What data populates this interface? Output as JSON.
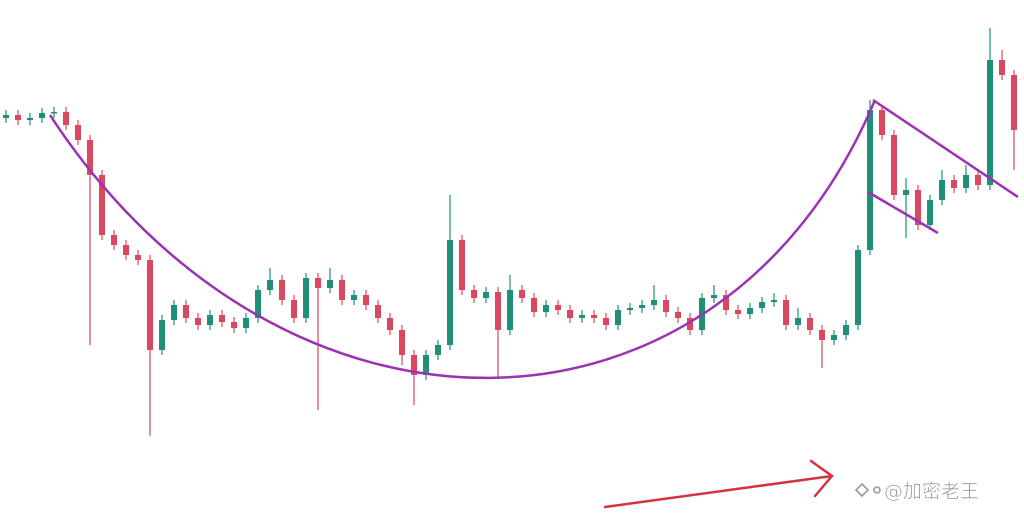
{
  "chart_data": {
    "type": "candlestick",
    "watermark": "@加密老王",
    "up_color": "#1f8f77",
    "down_color": "#d9485e",
    "ylim": [
      0,
      518
    ],
    "open": [
      400,
      403,
      398,
      400,
      405,
      406,
      393,
      378,
      343,
      283,
      273,
      263,
      258,
      168,
      198,
      213,
      200,
      193,
      203,
      196,
      190,
      200,
      228,
      238,
      218,
      200,
      240,
      230,
      238,
      218,
      223,
      213,
      200,
      188,
      163,
      143,
      163,
      173,
      278,
      228,
      220,
      226,
      188,
      228,
      220,
      206,
      213,
      208,
      200,
      203,
      200,
      193,
      208,
      210,
      213,
      218,
      206,
      200,
      188,
      220,
      223,
      208,
      204,
      210,
      216,
      218,
      193,
      200,
      188,
      178,
      183,
      193,
      268,
      408,
      383,
      323,
      328,
      293,
      318,
      338,
      330,
      343,
      333,
      458,
      443
    ],
    "high": [
      408,
      408,
      405,
      410,
      411,
      411,
      398,
      383,
      348,
      288,
      278,
      268,
      263,
      203,
      218,
      218,
      205,
      208,
      208,
      201,
      205,
      233,
      250,
      243,
      223,
      245,
      245,
      250,
      243,
      228,
      228,
      218,
      205,
      193,
      168,
      168,
      178,
      323,
      283,
      233,
      231,
      231,
      243,
      233,
      225,
      218,
      218,
      213,
      208,
      208,
      205,
      213,
      215,
      218,
      233,
      223,
      211,
      205,
      225,
      233,
      228,
      213,
      215,
      221,
      225,
      223,
      210,
      205,
      193,
      188,
      198,
      273,
      418,
      413,
      388,
      340,
      333,
      323,
      348,
      343,
      353,
      348,
      490,
      468,
      448
    ],
    "low": [
      395,
      393,
      393,
      395,
      400,
      388,
      373,
      173,
      278,
      268,
      258,
      253,
      82,
      163,
      193,
      195,
      188,
      188,
      191,
      185,
      185,
      195,
      223,
      213,
      195,
      195,
      108,
      225,
      213,
      213,
      208,
      195,
      183,
      153,
      113,
      138,
      158,
      168,
      223,
      215,
      215,
      140,
      183,
      215,
      201,
      201,
      203,
      195,
      195,
      195,
      188,
      188,
      203,
      205,
      208,
      201,
      195,
      183,
      183,
      215,
      203,
      199,
      199,
      205,
      211,
      188,
      188,
      183,
      150,
      173,
      178,
      188,
      263,
      378,
      318,
      280,
      288,
      288,
      313,
      325,
      325,
      328,
      328,
      438,
      348
    ],
    "close": [
      403,
      398,
      400,
      405,
      406,
      393,
      378,
      343,
      283,
      273,
      263,
      258,
      168,
      198,
      213,
      200,
      193,
      203,
      196,
      190,
      200,
      228,
      238,
      218,
      200,
      240,
      230,
      238,
      218,
      223,
      213,
      200,
      188,
      163,
      143,
      163,
      173,
      278,
      228,
      220,
      226,
      188,
      228,
      220,
      206,
      213,
      208,
      200,
      203,
      200,
      193,
      208,
      210,
      213,
      218,
      206,
      200,
      188,
      220,
      223,
      208,
      204,
      210,
      216,
      218,
      193,
      200,
      188,
      178,
      183,
      193,
      268,
      408,
      383,
      323,
      328,
      293,
      318,
      338,
      330,
      343,
      333,
      458,
      443,
      388
    ]
  }
}
